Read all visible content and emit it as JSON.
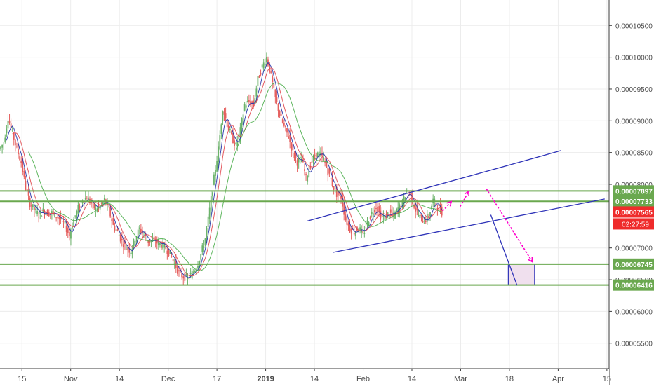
{
  "chart_data": {
    "type": "candlestick",
    "x_labels": [
      "15",
      "Nov",
      "14",
      "Dec",
      "17",
      "2019",
      "14",
      "Feb",
      "14",
      "Mar",
      "18",
      "Apr",
      "15"
    ],
    "x_label_bold": [
      "2019"
    ],
    "y_ticks": [
      {
        "label": "0.00010500",
        "value": 0.000105
      },
      {
        "label": "0.00010000",
        "value": 0.0001
      },
      {
        "label": "0.00009500",
        "value": 9.5e-05
      },
      {
        "label": "0.00009000",
        "value": 9e-05
      },
      {
        "label": "0.00008500",
        "value": 8.5e-05
      },
      {
        "label": "0.00008000",
        "value": 8e-05
      },
      {
        "label": "0.00007000",
        "value": 7e-05
      },
      {
        "label": "0.00006500",
        "value": 6.5e-05
      },
      {
        "label": "0.00006000",
        "value": 6e-05
      },
      {
        "label": "0.00005500",
        "value": 5.5e-05
      }
    ],
    "horizontal_levels": [
      {
        "label": "0.00007897",
        "value": 7.897e-05,
        "color": "#6aa84f"
      },
      {
        "label": "0.00007733",
        "value": 7.733e-05,
        "color": "#6aa84f"
      },
      {
        "label": "0.00006745",
        "value": 6.745e-05,
        "color": "#6aa84f"
      },
      {
        "label": "0.00006416",
        "value": 6.416e-05,
        "color": "#6aa84f"
      }
    ],
    "last_price": {
      "label": "0.00007565",
      "value": 7.565e-05,
      "countdown": "02:27:59",
      "color": "#ef2b2b"
    },
    "price_path": [
      [
        0,
        8.55e-05
      ],
      [
        1,
        8.65e-05
      ],
      [
        2,
        9.05e-05
      ],
      [
        3,
        8.8e-05
      ],
      [
        4,
        8.55e-05
      ],
      [
        5,
        8.35e-05
      ],
      [
        6,
        7.95e-05
      ],
      [
        7,
        7.7e-05
      ],
      [
        8,
        7.6e-05
      ],
      [
        9,
        7.52e-05
      ],
      [
        10,
        7.58e-05
      ],
      [
        11,
        7.55e-05
      ],
      [
        12,
        7.55e-05
      ],
      [
        13,
        7.5e-05
      ],
      [
        14,
        7.45e-05
      ],
      [
        15,
        7.35e-05
      ],
      [
        16,
        7.2e-05
      ],
      [
        17,
        7.45e-05
      ],
      [
        18,
        7.62e-05
      ],
      [
        19,
        7.75e-05
      ],
      [
        20,
        7.8e-05
      ],
      [
        21,
        7.7e-05
      ],
      [
        22,
        7.6e-05
      ],
      [
        23,
        7.65e-05
      ],
      [
        24,
        7.75e-05
      ],
      [
        25,
        7.6e-05
      ],
      [
        26,
        7.35e-05
      ],
      [
        27,
        7.25e-05
      ],
      [
        28,
        7.1e-05
      ],
      [
        29,
        7e-05
      ],
      [
        30,
        6.95e-05
      ],
      [
        31,
        7.15e-05
      ],
      [
        32,
        7.3e-05
      ],
      [
        33,
        7.2e-05
      ],
      [
        34,
        7.1e-05
      ],
      [
        35,
        7.12e-05
      ],
      [
        36,
        7.08e-05
      ],
      [
        37,
        7.05e-05
      ],
      [
        38,
        7e-05
      ],
      [
        39,
        6.9e-05
      ],
      [
        40,
        6.75e-05
      ],
      [
        41,
        6.6e-05
      ],
      [
        42,
        6.55e-05
      ],
      [
        43,
        6.52e-05
      ],
      [
        44,
        6.6e-05
      ],
      [
        45,
        6.7e-05
      ],
      [
        46,
        6.9e-05
      ],
      [
        47,
        7.15e-05
      ],
      [
        48,
        7.6e-05
      ],
      [
        49,
        8.1e-05
      ],
      [
        50,
        8.55e-05
      ],
      [
        51,
        9.2e-05
      ],
      [
        52,
        8.95e-05
      ],
      [
        53,
        8.75e-05
      ],
      [
        54,
        8.6e-05
      ],
      [
        55,
        8.85e-05
      ],
      [
        56,
        9.25e-05
      ],
      [
        57,
        9.3e-05
      ],
      [
        58,
        9.25e-05
      ],
      [
        59,
        9.65e-05
      ],
      [
        60,
        9.85e-05
      ],
      [
        61,
        0.0001
      ],
      [
        62,
        9.7e-05
      ],
      [
        63,
        9.35e-05
      ],
      [
        64,
        9.1e-05
      ],
      [
        65,
        8.9e-05
      ],
      [
        66,
        8.75e-05
      ],
      [
        67,
        8.5e-05
      ],
      [
        68,
        8.35e-05
      ],
      [
        69,
        8.4e-05
      ],
      [
        70,
        8.1e-05
      ],
      [
        71,
        8.3e-05
      ],
      [
        72,
        8.45e-05
      ],
      [
        73,
        8.48e-05
      ],
      [
        74,
        8.4e-05
      ],
      [
        75,
        8.2e-05
      ],
      [
        76,
        8e-05
      ],
      [
        77,
        7.85e-05
      ],
      [
        78,
        7.8e-05
      ],
      [
        79,
        7.45e-05
      ],
      [
        80,
        7.3e-05
      ],
      [
        81,
        7.25e-05
      ],
      [
        82,
        7.32e-05
      ],
      [
        83,
        7.2e-05
      ],
      [
        84,
        7.4e-05
      ],
      [
        85,
        7.55e-05
      ],
      [
        86,
        7.65e-05
      ],
      [
        87,
        7.5e-05
      ],
      [
        88,
        7.48e-05
      ],
      [
        89,
        7.55e-05
      ],
      [
        90,
        7.5e-05
      ],
      [
        91,
        7.62e-05
      ],
      [
        92,
        7.7e-05
      ],
      [
        93,
        7.9e-05
      ],
      [
        94,
        7.8e-05
      ],
      [
        95,
        7.6e-05
      ],
      [
        96,
        7.48e-05
      ],
      [
        97,
        7.42e-05
      ],
      [
        98,
        7.5e-05
      ],
      [
        99,
        7.75e-05
      ],
      [
        100,
        7.65e-05
      ],
      [
        101,
        7.57e-05
      ]
    ],
    "overlay_lines": [
      {
        "color": "#2e33b8",
        "from": [
          70,
          7.42e-05
        ],
        "to": [
          128,
          8.53e-05
        ]
      },
      {
        "color": "#2e33b8",
        "from": [
          76,
          6.93e-05
        ],
        "to": [
          138,
          7.77e-05
        ]
      },
      {
        "color": "#2e33b8",
        "from": [
          112,
          7.52e-05
        ],
        "to": [
          118,
          6.41e-05
        ]
      }
    ],
    "target_box": {
      "x_start": 116,
      "x_end": 122,
      "top": 6.745e-05,
      "bottom": 6.416e-05,
      "border": "#2e33b8",
      "fill": "#f0e0ee"
    },
    "projection_arrows": [
      {
        "color": "#ff00cc",
        "from": [
          101,
          7.58e-05
        ],
        "to": [
          103,
          7.73e-05
        ],
        "dashed": true
      },
      {
        "color": "#ff00cc",
        "from": [
          105,
          7.65e-05
        ],
        "to": [
          107,
          7.89e-05
        ],
        "dashed": true
      },
      {
        "color": "#ff00cc",
        "from": [
          111,
          7.93e-05
        ],
        "to": [
          121.5,
          6.78e-05
        ],
        "dashed": true
      }
    ],
    "moving_averages": [
      {
        "color": "#2233aa",
        "period": 5
      },
      {
        "color": "#e0484f",
        "period": 9
      },
      {
        "color": "#4cae4c",
        "period": 20
      }
    ],
    "ylim": [
      5.1e-05,
      0.000109
    ],
    "xlim": [
      0,
      139
    ],
    "grid": true,
    "up_color": "#6bb26a",
    "down_color": "#e5605f"
  }
}
